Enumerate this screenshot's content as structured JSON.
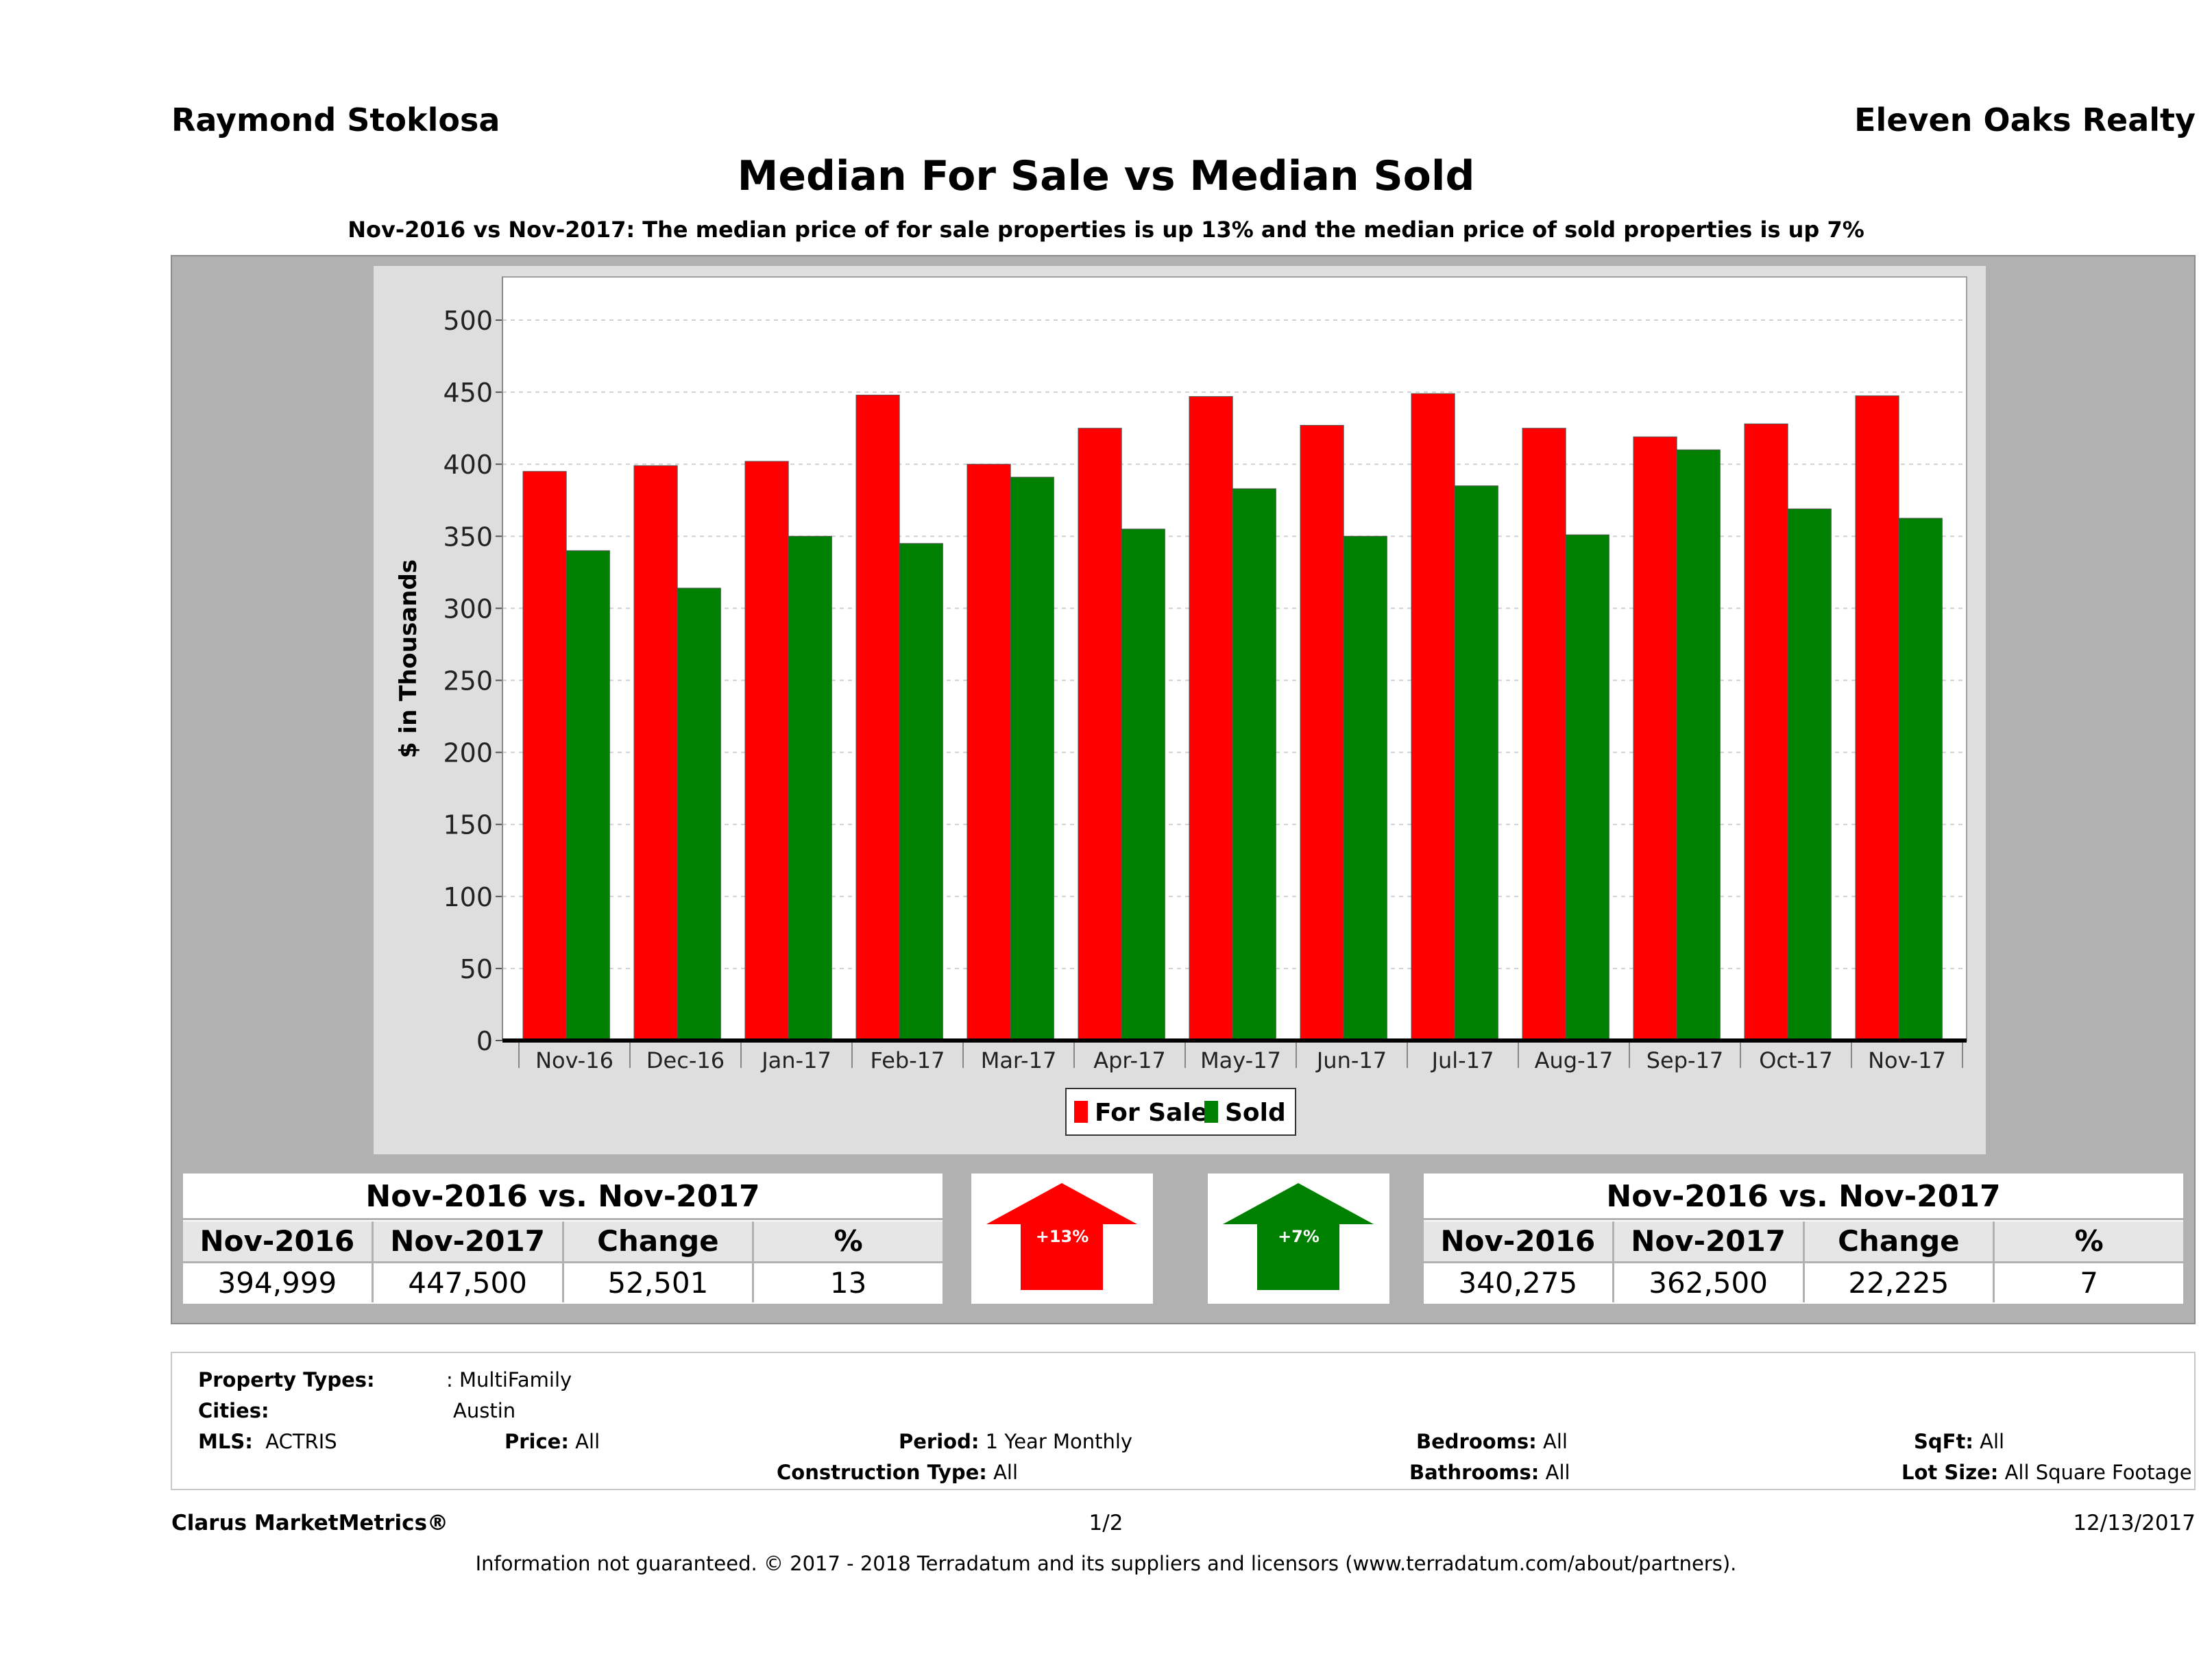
{
  "header": {
    "agent": "Raymond Stoklosa",
    "brokerage": "Eleven Oaks Realty",
    "title": "Median For Sale vs Median Sold",
    "subtitle": "Nov-2016 vs Nov-2017: The median price of for sale properties is up 13% and the median price of sold properties is up 7%"
  },
  "colors": {
    "for_sale": "#ff0000",
    "sold": "#008000"
  },
  "chart_data": {
    "type": "bar",
    "ylabel": "$ in Thousands",
    "ylim": [
      0,
      530
    ],
    "yticks": [
      "0",
      "50",
      "100",
      "150",
      "200",
      "250",
      "300",
      "350",
      "400",
      "450",
      "500"
    ],
    "grid": true,
    "legend_position": "bottom",
    "categories": [
      "Nov-16",
      "Dec-16",
      "Jan-17",
      "Feb-17",
      "Mar-17",
      "Apr-17",
      "May-17",
      "Jun-17",
      "Jul-17",
      "Aug-17",
      "Sep-17",
      "Oct-17",
      "Nov-17"
    ],
    "series": [
      {
        "name": "For Sale",
        "values": [
          395,
          399,
          402,
          448,
          400,
          425,
          447,
          427,
          449,
          425,
          419,
          428,
          447.5
        ]
      },
      {
        "name": "Sold",
        "values": [
          340,
          314,
          350,
          345,
          391,
          355,
          383,
          350,
          385,
          351,
          410,
          369,
          362.5
        ]
      }
    ]
  },
  "for_sale_summary": {
    "title": "Nov-2016 vs. Nov-2017",
    "headers": [
      "Nov-2016",
      "Nov-2017",
      "Change",
      "%"
    ],
    "values": [
      "394,999",
      "447,500",
      "52,501",
      "13"
    ],
    "badge": "+13%"
  },
  "sold_summary": {
    "title": "Nov-2016 vs. Nov-2017",
    "headers": [
      "Nov-2016",
      "Nov-2017",
      "Change",
      "%"
    ],
    "values": [
      "340,275",
      "362,500",
      "22,225",
      "7"
    ],
    "badge": "+7%"
  },
  "filters": {
    "property_types_label": "Property Types:",
    "property_types_value": ": MultiFamily",
    "cities_label": "Cities:",
    "cities_value": "Austin",
    "mls_label": "MLS:",
    "mls_value": "ACTRIS",
    "price_label": "Price:",
    "price_value": "All",
    "period_label": "Period:",
    "period_value": "1 Year Monthly",
    "construction_label": "Construction Type:",
    "construction_value": "All",
    "bedrooms_label": "Bedrooms:",
    "bedrooms_value": "All",
    "bathrooms_label": "Bathrooms:",
    "bathrooms_value": "All",
    "sqft_label": "SqFt:",
    "sqft_value": "All",
    "lot_label": "Lot Size:",
    "lot_value": "All Square Footage"
  },
  "footer": {
    "brand": "Clarus MarketMetrics®",
    "page": "1/2",
    "date": "12/13/2017",
    "disclaimer": "Information not guaranteed. © 2017 - 2018 Terradatum and its suppliers and licensors (www.terradatum.com/about/partners)."
  }
}
